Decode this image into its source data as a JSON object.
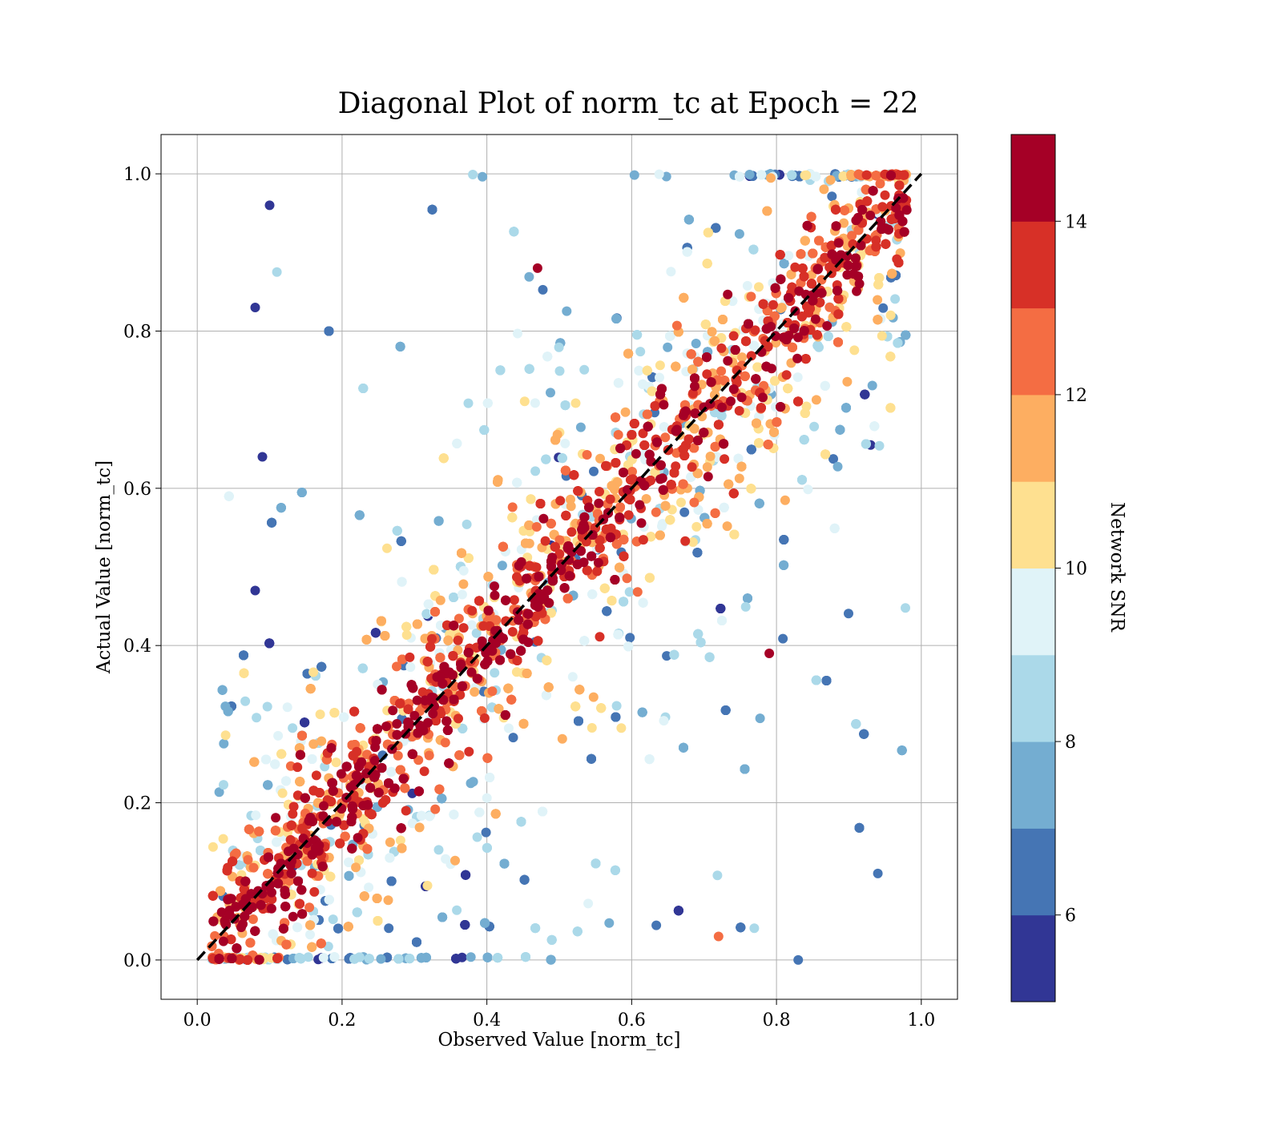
{
  "chart_data": {
    "type": "scatter",
    "title": "Diagonal Plot of norm_tc at Epoch = 22",
    "xlabel": "Observed Value [norm_tc]",
    "ylabel": "Actual Value [norm_tc]",
    "xlim": [
      -0.05,
      1.05
    ],
    "ylim": [
      -0.05,
      1.05
    ],
    "x_ticks": [
      "0.0",
      "0.2",
      "0.4",
      "0.6",
      "0.8",
      "1.0"
    ],
    "y_ticks": [
      "0.0",
      "0.2",
      "0.4",
      "0.6",
      "0.8",
      "1.0"
    ],
    "grid": true,
    "reference_line": {
      "from": [
        0,
        0
      ],
      "to": [
        1,
        1
      ],
      "style": "dashed",
      "color": "#000000"
    },
    "colorbar": {
      "label": "Network SNR",
      "range": [
        5,
        15
      ],
      "ticks": [
        "6",
        "8",
        "10",
        "12",
        "14"
      ],
      "colors": [
        "#313695",
        "#4575b4",
        "#74add1",
        "#abd9e9",
        "#e0f3f8",
        "#fee090",
        "#fdae61",
        "#f46d43",
        "#d73027",
        "#a50026"
      ]
    },
    "sample_points": [
      {
        "x": 0.1,
        "y": 0.96,
        "snr": 5.2
      },
      {
        "x": 0.08,
        "y": 0.83,
        "snr": 5.3
      },
      {
        "x": 0.11,
        "y": 0.875,
        "snr": 8.5
      },
      {
        "x": 0.09,
        "y": 0.64,
        "snr": 5.4
      },
      {
        "x": 0.08,
        "y": 0.47,
        "snr": 5.1
      },
      {
        "x": 0.83,
        "y": 0.0,
        "snr": 6.2
      },
      {
        "x": 0.94,
        "y": 0.11,
        "snr": 6.5
      },
      {
        "x": 0.93,
        "y": 0.655,
        "snr": 5.5
      },
      {
        "x": 0.47,
        "y": 0.88,
        "snr": 14.8
      },
      {
        "x": 0.79,
        "y": 0.39,
        "snr": 14.6
      },
      {
        "x": 0.72,
        "y": 0.03,
        "snr": 12.8
      }
    ]
  }
}
